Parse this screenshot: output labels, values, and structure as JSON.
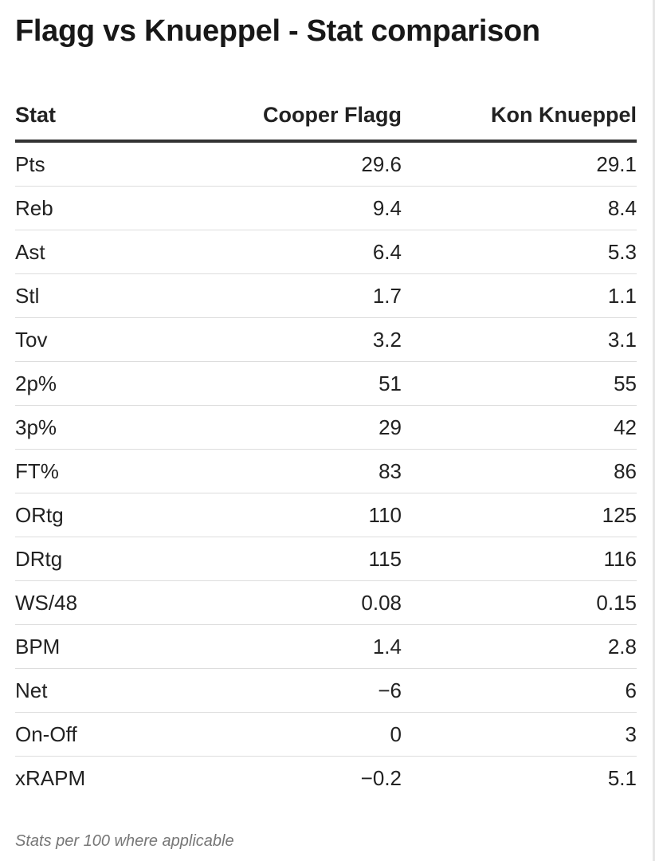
{
  "title": "Flagg vs Knueppel - Stat comparison",
  "footnote": "Stats per 100 where applicable",
  "chart_data": {
    "type": "table",
    "title": "Flagg vs Knueppel - Stat comparison",
    "columns": [
      "Stat",
      "Cooper Flagg",
      "Kon Knueppel"
    ],
    "rows": [
      [
        "Pts",
        "29.6",
        "29.1"
      ],
      [
        "Reb",
        "9.4",
        "8.4"
      ],
      [
        "Ast",
        "6.4",
        "5.3"
      ],
      [
        "Stl",
        "1.7",
        "1.1"
      ],
      [
        "Tov",
        "3.2",
        "3.1"
      ],
      [
        "2p%",
        "51",
        "55"
      ],
      [
        "3p%",
        "29",
        "42"
      ],
      [
        "FT%",
        "83",
        "86"
      ],
      [
        "ORtg",
        "110",
        "125"
      ],
      [
        "DRtg",
        "115",
        "116"
      ],
      [
        "WS/48",
        "0.08",
        "0.15"
      ],
      [
        "BPM",
        "1.4",
        "2.8"
      ],
      [
        "Net",
        "−6",
        "6"
      ],
      [
        "On-Off",
        "0",
        "3"
      ],
      [
        "xRAPM",
        "−0.2",
        "5.1"
      ]
    ],
    "notes": "Stats per 100 where applicable"
  }
}
